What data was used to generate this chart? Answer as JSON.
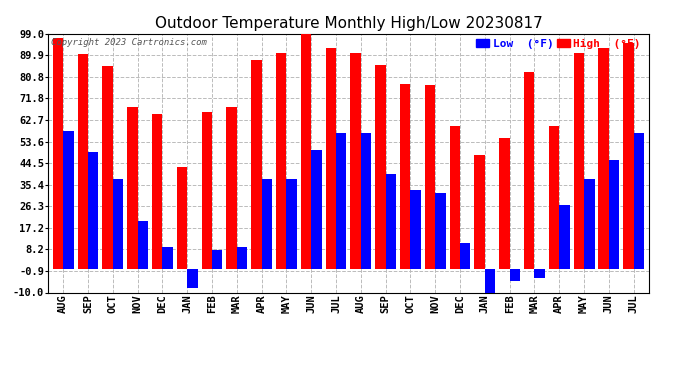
{
  "title": "Outdoor Temperature Monthly High/Low 20230817",
  "copyright": "Copyright 2023 Cartronics.com",
  "legend_low": "Low  (°F)",
  "legend_high": "High  (°F)",
  "months": [
    "AUG",
    "SEP",
    "OCT",
    "NOV",
    "DEC",
    "JAN",
    "FEB",
    "MAR",
    "APR",
    "MAY",
    "JUN",
    "JUL",
    "AUG",
    "SEP",
    "OCT",
    "NOV",
    "DEC",
    "JAN",
    "FEB",
    "MAR",
    "APR",
    "MAY",
    "JUN",
    "JUL"
  ],
  "highs": [
    97.0,
    90.5,
    85.5,
    68.0,
    65.0,
    43.0,
    66.0,
    68.0,
    88.0,
    91.0,
    99.0,
    93.0,
    91.0,
    86.0,
    78.0,
    77.5,
    60.0,
    48.0,
    55.0,
    83.0,
    60.0,
    91.0,
    93.0,
    95.0
  ],
  "lows": [
    58.0,
    49.0,
    38.0,
    20.0,
    9.0,
    -8.0,
    8.0,
    9.0,
    38.0,
    38.0,
    50.0,
    57.0,
    57.0,
    40.0,
    33.0,
    32.0,
    11.0,
    -13.0,
    -5.0,
    -4.0,
    27.0,
    38.0,
    46.0,
    57.0
  ],
  "ylim": [
    -10.0,
    99.0
  ],
  "yticks": [
    -10.0,
    -0.9,
    8.2,
    17.2,
    26.3,
    35.4,
    44.5,
    53.6,
    62.7,
    71.8,
    80.8,
    89.9,
    99.0
  ],
  "high_color": "#ff0000",
  "low_color": "#0000ff",
  "bg_color": "#ffffff",
  "grid_color": "#bbbbbb",
  "title_fontsize": 11,
  "tick_fontsize": 7.5,
  "bar_width": 0.42
}
